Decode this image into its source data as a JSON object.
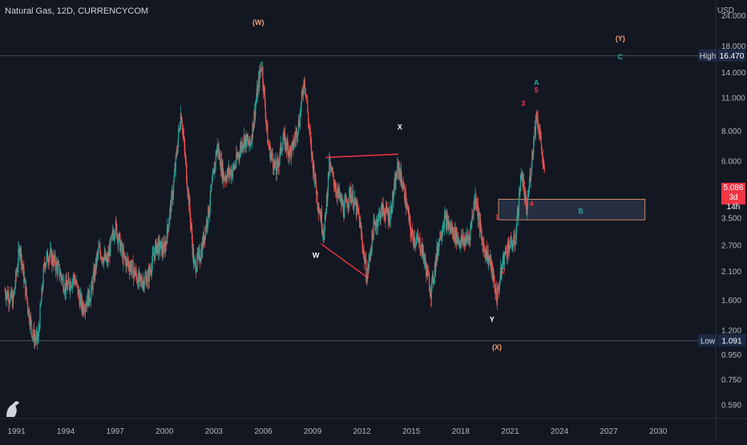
{
  "header": {
    "title": "Natural Gas, 12D, CURRENCYCOM",
    "currency": "USD"
  },
  "price_tag": {
    "value": "5.086",
    "countdown": "3d 14h"
  },
  "chart_data": {
    "type": "candlestick",
    "symbol": "Natural Gas",
    "interval": "12D",
    "source": "CURRENCYCOM",
    "y_scale": "log",
    "ylim": [
      0.52,
      28
    ],
    "xlim": [
      1990.0,
      2033.5
    ],
    "x_tick_labels": [
      "1991",
      "1994",
      "1997",
      "2000",
      "2003",
      "2006",
      "2009",
      "2012",
      "2015",
      "2018",
      "2021",
      "2024",
      "2027",
      "2030"
    ],
    "y_tick_labels": [
      "24.000",
      "18.000",
      "14.000",
      "11.000",
      "8.000",
      "6.000",
      "4.500",
      "3.500",
      "2.700",
      "2.100",
      "1.600",
      "1.200",
      "0.950",
      "0.750",
      "0.590"
    ],
    "high_line": {
      "label": "High",
      "value": "16.470"
    },
    "low_line": {
      "label": "Low",
      "value": "1.091"
    },
    "last_price": "5.086",
    "price_path": [
      [
        1990.3,
        1.75
      ],
      [
        1990.8,
        1.6
      ],
      [
        1991.2,
        2.7
      ],
      [
        1991.7,
        1.5
      ],
      [
        1992.0,
        1.15
      ],
      [
        1992.3,
        1.09
      ],
      [
        1992.7,
        2.3
      ],
      [
        1993.0,
        2.5
      ],
      [
        1993.5,
        2.2
      ],
      [
        1994.0,
        1.8
      ],
      [
        1994.5,
        2.0
      ],
      [
        1995.0,
        1.5
      ],
      [
        1995.5,
        1.7
      ],
      [
        1996.0,
        2.6
      ],
      [
        1996.5,
        2.3
      ],
      [
        1997.0,
        3.3
      ],
      [
        1997.5,
        2.4
      ],
      [
        1998.0,
        2.2
      ],
      [
        1998.5,
        1.9
      ],
      [
        1999.0,
        2.0
      ],
      [
        1999.5,
        2.7
      ],
      [
        2000.0,
        2.6
      ],
      [
        2000.5,
        4.5
      ],
      [
        2001.0,
        9.8
      ],
      [
        2001.5,
        4.0
      ],
      [
        2001.8,
        2.2
      ],
      [
        2002.2,
        2.5
      ],
      [
        2002.7,
        3.8
      ],
      [
        2003.2,
        7.0
      ],
      [
        2003.6,
        5.2
      ],
      [
        2004.2,
        5.6
      ],
      [
        2004.8,
        7.5
      ],
      [
        2005.2,
        7.0
      ],
      [
        2005.7,
        12.5
      ],
      [
        2005.9,
        15.5
      ],
      [
        2006.3,
        7.0
      ],
      [
        2006.8,
        5.5
      ],
      [
        2007.2,
        7.5
      ],
      [
        2007.7,
        6.5
      ],
      [
        2008.2,
        9.0
      ],
      [
        2008.5,
        13.5
      ],
      [
        2008.9,
        6.8
      ],
      [
        2009.3,
        4.2
      ],
      [
        2009.7,
        3.0
      ],
      [
        2010.0,
        5.8
      ],
      [
        2010.5,
        4.5
      ],
      [
        2010.9,
        3.8
      ],
      [
        2011.3,
        4.5
      ],
      [
        2011.8,
        3.6
      ],
      [
        2012.3,
        2.0
      ],
      [
        2012.7,
        3.2
      ],
      [
        2013.2,
        3.8
      ],
      [
        2013.7,
        3.6
      ],
      [
        2014.2,
        5.8
      ],
      [
        2014.6,
        4.4
      ],
      [
        2015.0,
        3.0
      ],
      [
        2015.6,
        2.7
      ],
      [
        2016.2,
        1.75
      ],
      [
        2016.7,
        2.9
      ],
      [
        2017.0,
        3.5
      ],
      [
        2017.5,
        3.1
      ],
      [
        2018.0,
        2.8
      ],
      [
        2018.5,
        2.9
      ],
      [
        2018.9,
        4.4
      ],
      [
        2019.3,
        2.8
      ],
      [
        2019.8,
        2.3
      ],
      [
        2020.2,
        1.65
      ],
      [
        2020.6,
        2.4
      ],
      [
        2020.9,
        2.7
      ],
      [
        2021.3,
        2.8
      ],
      [
        2021.7,
        5.5
      ],
      [
        2022.0,
        3.7
      ],
      [
        2022.4,
        7.0
      ],
      [
        2022.6,
        9.5
      ],
      [
        2022.8,
        8.0
      ],
      [
        2023.1,
        5.086
      ]
    ],
    "wave_labels": [
      {
        "text": "(W)",
        "x": 2005.7,
        "y": 22.5,
        "color": "#f7a072"
      },
      {
        "text": "(Y)",
        "x": 2027.7,
        "y": 19.3,
        "color": "#f7a072"
      },
      {
        "text": "C",
        "x": 2027.7,
        "y": 16.2,
        "color": "#26a69a"
      },
      {
        "text": "A",
        "x": 2022.6,
        "y": 12.7,
        "color": "#26a69a"
      },
      {
        "text": "5",
        "x": 2022.6,
        "y": 11.8,
        "color": "#f23645"
      },
      {
        "text": "3",
        "x": 2021.8,
        "y": 10.4,
        "color": "#f23645"
      },
      {
        "text": "X",
        "x": 2014.3,
        "y": 8.3,
        "color": "#ffffff"
      },
      {
        "text": "4",
        "x": 2022.3,
        "y": 4.0,
        "color": "#f23645"
      },
      {
        "text": "1",
        "x": 2020.2,
        "y": 3.52,
        "color": "#f23645"
      },
      {
        "text": "W",
        "x": 2009.2,
        "y": 2.45,
        "color": "#ffffff"
      },
      {
        "text": "2",
        "x": 2020.6,
        "y": 2.1,
        "color": "#f23645"
      },
      {
        "text": "Y",
        "x": 2019.9,
        "y": 1.33,
        "color": "#ffffff"
      },
      {
        "text": "(X)",
        "x": 2020.2,
        "y": 1.02,
        "color": "#f7a072"
      },
      {
        "text": "B",
        "x": 2025.3,
        "y": 3.73,
        "color": "#26a69a"
      }
    ],
    "trendlines": [
      {
        "points": [
          [
            2009.8,
            6.25
          ],
          [
            2014.2,
            6.45
          ]
        ],
        "color": "#f23645"
      },
      {
        "points": [
          [
            2009.5,
            2.75
          ],
          [
            2012.3,
            2.0
          ]
        ],
        "color": "#f23645"
      }
    ],
    "zone": {
      "x0": 2020.3,
      "x1": 2029.2,
      "y0": 3.45,
      "y1": 4.2,
      "fill": "#2a3346",
      "stroke": "#f7a072",
      "label": "B"
    },
    "colors": {
      "up": "#26a69a",
      "down": "#ef5350",
      "background": "#131722",
      "grid": "#1f2433",
      "axis_text": "#b2b5be"
    },
    "grid": false
  }
}
